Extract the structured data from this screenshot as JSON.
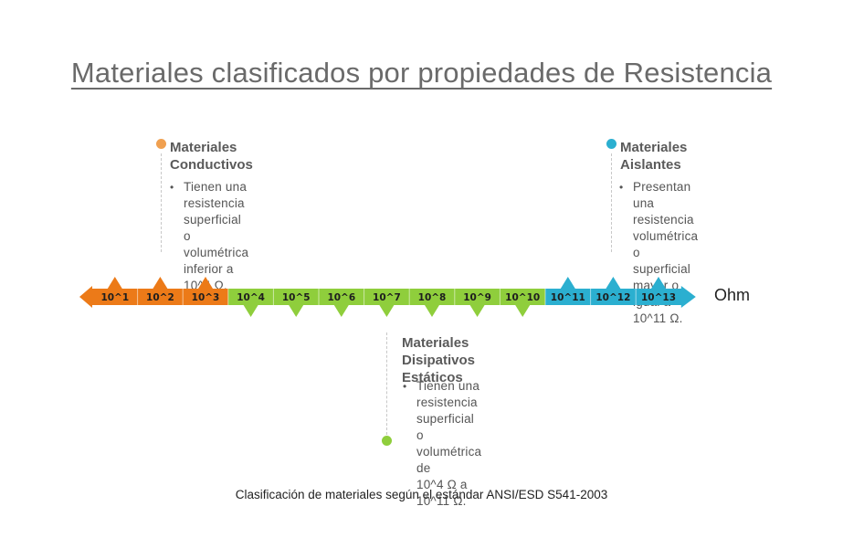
{
  "title": "Materiales clasificados por propiedades de Resistencia",
  "colors": {
    "conductive": "#ec7a18",
    "dissipative": "#8fce3c",
    "insulating": "#2bafd0",
    "text": "#555555"
  },
  "groups": {
    "conductive": {
      "heading_line1": "Materiales",
      "heading_line2": "Conductivos",
      "bullet": [
        "Tienen una resistencia",
        "superficial o",
        "volumétrica inferior a",
        "10^4 Ω."
      ]
    },
    "insulating": {
      "heading_line1": "Materiales",
      "heading_line2": "Aislantes",
      "bullet": [
        "Presentan una",
        "resistencia",
        "volumétrica o",
        "superficial mayor o",
        "igual a 10^11 Ω."
      ]
    },
    "dissipative": {
      "heading_line1": "Materiales",
      "heading_line2": "Disipativos Estáticos",
      "bullet": [
        "Tienen una",
        "resistencia",
        "superficial o",
        "volumétrica de",
        "10^4 Ω a 10^11 Ω."
      ]
    }
  },
  "scale": {
    "unit": "Ohm",
    "segments": [
      {
        "label": "10^1",
        "group": "conductive"
      },
      {
        "label": "10^2",
        "group": "conductive"
      },
      {
        "label": "10^3",
        "group": "conductive"
      },
      {
        "label": "10^4",
        "group": "dissipative"
      },
      {
        "label": "10^5",
        "group": "dissipative"
      },
      {
        "label": "10^6",
        "group": "dissipative"
      },
      {
        "label": "10^7",
        "group": "dissipative"
      },
      {
        "label": "10^8",
        "group": "dissipative"
      },
      {
        "label": "10^9",
        "group": "dissipative"
      },
      {
        "label": "10^10",
        "group": "dissipative"
      },
      {
        "label": "10^11",
        "group": "insulating"
      },
      {
        "label": "10^12",
        "group": "insulating"
      },
      {
        "label": "10^13",
        "group": "insulating"
      }
    ]
  },
  "caption": "Clasificación de materiales según el estándar ANSI/ESD S541-2003"
}
